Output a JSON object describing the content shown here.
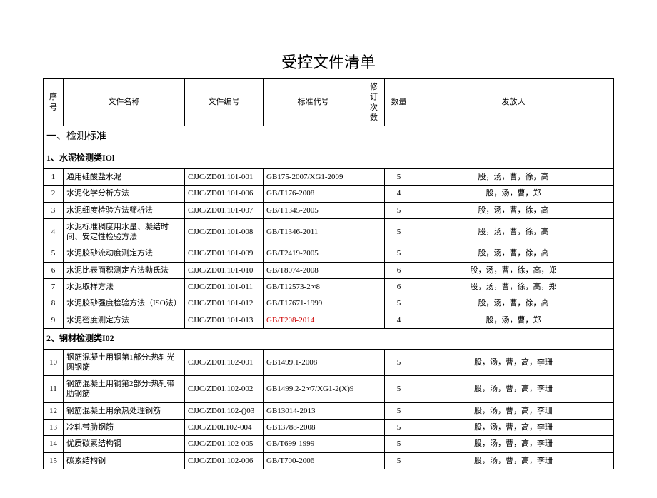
{
  "title": "受控文件清单",
  "headers": {
    "seq": "序号",
    "name": "文件名称",
    "code": "文件编号",
    "std": "标准代号",
    "rev": "修订次数",
    "qty": "数量",
    "dist": "发放人"
  },
  "section1": "一、检测标准",
  "sub1": "1、水泥检测类IOl",
  "sub2": "2、钢材检测类I02",
  "rows1": [
    {
      "seq": "1",
      "name": "通用硅酸盐水泥",
      "code": "CJJC/ZD01.101-001",
      "std": "GB175-2007/XG1-2009",
      "rev": "",
      "qty": "5",
      "dist": "股，汤，曹，徐，高"
    },
    {
      "seq": "2",
      "name": "水泥化学分析方法",
      "code": "CJJC/ZD01.101-006",
      "std": "GB/T176-2008",
      "rev": "",
      "qty": "4",
      "dist": "股，汤，曹，郑"
    },
    {
      "seq": "3",
      "name": "水泥细度检验方法筛析法",
      "code": "CJJC/ZD01.101-007",
      "std": "GB/T1345-2005",
      "rev": "",
      "qty": "5",
      "dist": "股，汤，曹，徐，高"
    },
    {
      "seq": "4",
      "name": "水泥标准稠度用水量、凝结时间、安定性检验方法",
      "code": "CJJC/ZD01.101-008",
      "std": "GB/T1346-2011",
      "rev": "",
      "qty": "5",
      "dist": "股，汤，曹，徐，高"
    },
    {
      "seq": "5",
      "name": "水泥胶砂流动度测定方法",
      "code": "CJJC/ZD01.101-009",
      "std": "GB/T2419-2005",
      "rev": "",
      "qty": "5",
      "dist": "股，汤，曹，徐，高"
    },
    {
      "seq": "6",
      "name": "水泥比表面积测定方法勃氏法",
      "code": "CJJC/ZD01.101-010",
      "std": "GB/T8074-2008",
      "rev": "",
      "qty": "6",
      "dist": "股，汤，曹，徐，高，郑"
    },
    {
      "seq": "7",
      "name": "水泥取样方法",
      "code": "CJJC/ZD01.101-011",
      "std": "GB/T12573-2∞8",
      "rev": "",
      "qty": "6",
      "dist": "股，汤，曹，徐，高，郑"
    },
    {
      "seq": "8",
      "name": "水泥胶砂强度检验方法（ISO法）",
      "code": "CJJC/ZD01.101-012",
      "std": "GB/T17671-1999",
      "rev": "",
      "qty": "5",
      "dist": "股，汤，曹，徐，高"
    },
    {
      "seq": "9",
      "name": "水泥密度测定方法",
      "code": "CJJC/ZD01.101-013",
      "std": "GB/T208-2014",
      "rev": "",
      "qty": "4",
      "dist": "股，汤，曹，郑",
      "stdRed": true
    }
  ],
  "rows2": [
    {
      "seq": "10",
      "name": "钢筋混凝土用钢第1部分:热轧光圆钢筋",
      "code": "CJJC/ZD01.102-001",
      "std": "GB1499.1-2008",
      "rev": "",
      "qty": "5",
      "dist": "股，汤，曹，高，李珊"
    },
    {
      "seq": "11",
      "name": "钢筋混凝土用钢第2部分:热轧带肋钢筋",
      "code": "CJJC/ZD01.102-002",
      "std": "GB1499.2-2∞7/XG1-2(X)9",
      "rev": "",
      "qty": "5",
      "dist": "股，汤，曹，高，李珊"
    },
    {
      "seq": "12",
      "name": "钢筋混凝土用余热处理钢筋",
      "code": "CJJC/ZD01.102-()03",
      "std": "GB13014-2013",
      "rev": "",
      "qty": "5",
      "dist": "股，汤，曹，高，李珊"
    },
    {
      "seq": "13",
      "name": "冷轧带肋钢筋",
      "code": "CJJC/ZD0I.102-004",
      "std": "GB13788-2008",
      "rev": "",
      "qty": "5",
      "dist": "股，汤，曹，高，李珊"
    },
    {
      "seq": "14",
      "name": "优质碳素结构钢",
      "code": "CJJC/ZD01.102-005",
      "std": "GB/T699-1999",
      "rev": "",
      "qty": "5",
      "dist": "股，汤，曹，高，李珊"
    },
    {
      "seq": "15",
      "name": "碳素结构钢",
      "code": "CJJC/ZD01.102-006",
      "std": "GB/T700-2006",
      "rev": "",
      "qty": "5",
      "dist": "股，汤，曹，高，李珊"
    }
  ]
}
